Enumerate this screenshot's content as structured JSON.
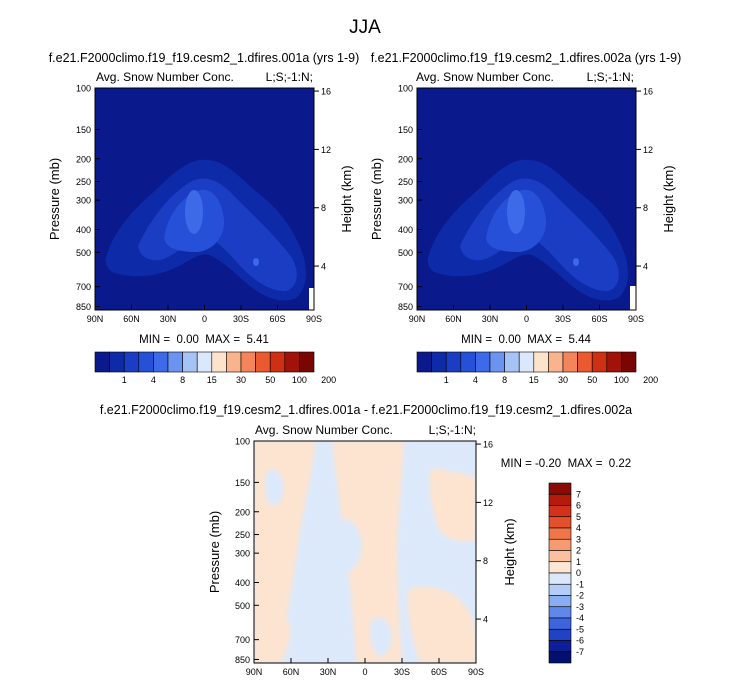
{
  "figure": {
    "title": "JJA",
    "diff_title": "f.e21.F2000climo.f19_f19.cesm2_1.dfires.001a - f.e21.F2000climo.f19_f19.cesm2_1.dfires.002a"
  },
  "chart_data": [
    {
      "type": "heatmap",
      "title": "f.e21.F2000climo.f19_f19.cesm2_1.dfires.001a (yrs 1-9)",
      "subtitle_left": "Avg. Snow Number Conc.",
      "subtitle_right": "L;S;-1:N;",
      "xlabel": "",
      "ylabel": "Pressure (mb)",
      "ylabel_right": "Height (km)",
      "x_ticks": [
        "90N",
        "60N",
        "30N",
        "0",
        "30S",
        "60S",
        "90S"
      ],
      "y_ticks": [
        "100",
        "150",
        "200",
        "250",
        "300",
        "400",
        "500",
        "700",
        "850"
      ],
      "y2_ticks": [
        "16",
        "12",
        "8",
        "4"
      ],
      "stats": "MIN =  0.00  MAX =  5.41",
      "min": 0.0,
      "max": 5.41,
      "colorbar_labels": [
        "1",
        "4",
        "8",
        "15",
        "30",
        "50",
        "100",
        "200"
      ],
      "colorbar_colors": [
        "#0a1a8c",
        "#0d2aa8",
        "#1a3dc4",
        "#2650d8",
        "#3d6ae8",
        "#6b93f0",
        "#a6c3f6",
        "#dbe8fb",
        "#fde3cc",
        "#f9b48e",
        "#f4855a",
        "#ea5a2e",
        "#cf2f12",
        "#a31208",
        "#7a0603"
      ]
    },
    {
      "type": "heatmap",
      "title": "f.e21.F2000climo.f19_f19.cesm2_1.dfires.002a (yrs 1-9)",
      "subtitle_left": "Avg. Snow Number Conc.",
      "subtitle_right": "L;S;-1:N;",
      "xlabel": "",
      "ylabel": "Pressure (mb)",
      "ylabel_right": "Height (km)",
      "x_ticks": [
        "90N",
        "60N",
        "30N",
        "0",
        "30S",
        "60S",
        "90S"
      ],
      "y_ticks": [
        "100",
        "150",
        "200",
        "250",
        "300",
        "400",
        "500",
        "700",
        "850"
      ],
      "y2_ticks": [
        "16",
        "12",
        "8",
        "4"
      ],
      "stats": "MIN =  0.00  MAX =  5.44",
      "min": 0.0,
      "max": 5.44,
      "colorbar_labels": [
        "1",
        "4",
        "8",
        "15",
        "30",
        "50",
        "100",
        "200"
      ],
      "colorbar_colors": [
        "#0a1a8c",
        "#0d2aa8",
        "#1a3dc4",
        "#2650d8",
        "#3d6ae8",
        "#6b93f0",
        "#a6c3f6",
        "#dbe8fb",
        "#fde3cc",
        "#f9b48e",
        "#f4855a",
        "#ea5a2e",
        "#cf2f12",
        "#a31208",
        "#7a0603"
      ]
    },
    {
      "type": "heatmap",
      "title": "",
      "subtitle_left": "Avg. Snow Number Conc.",
      "subtitle_right": "L;S;-1:N;",
      "xlabel": "",
      "ylabel": "Pressure (mb)",
      "ylabel_right": "Height (km)",
      "x_ticks": [
        "90N",
        "60N",
        "30N",
        "0",
        "30S",
        "60S",
        "90S"
      ],
      "y_ticks": [
        "100",
        "150",
        "200",
        "250",
        "300",
        "400",
        "500",
        "700",
        "850"
      ],
      "y2_ticks": [
        "16",
        "12",
        "8",
        "4"
      ],
      "stats": "MIN = -0.20  MAX =  0.22",
      "min": -0.2,
      "max": 0.22,
      "colorbar_labels": [
        "7",
        "6",
        "5",
        "4",
        "3",
        "2",
        "1",
        "0",
        "-1",
        "-2",
        "-3",
        "-4",
        "-5",
        "-6",
        "-7"
      ],
      "colorbar_colors": [
        "#8a0b05",
        "#b51a0a",
        "#d3311a",
        "#e5502c",
        "#f07548",
        "#f69a72",
        "#fac09f",
        "#fde6d4",
        "#dbe8fb",
        "#b3cdf7",
        "#8aaef2",
        "#6088ea",
        "#3b64dd",
        "#2242c4",
        "#0c1f99",
        "#041070"
      ]
    }
  ]
}
